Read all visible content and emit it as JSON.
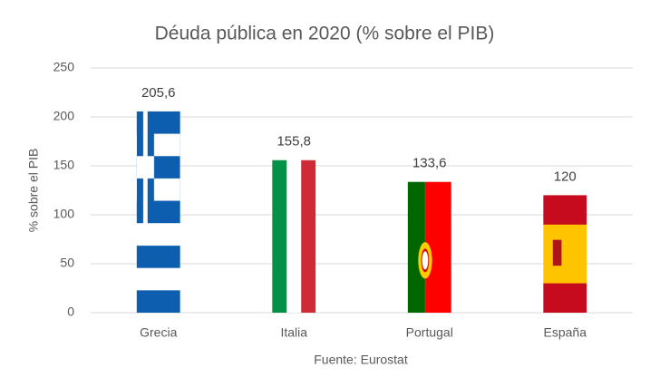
{
  "chart_data": {
    "type": "bar",
    "title": "Déuda pública en 2020 (% sobre el PIB)",
    "y_label": "% sobre el PIB",
    "x_label": "Fuente: Eurostat",
    "categories": [
      "Grecia",
      "Italia",
      "Portugal",
      "España"
    ],
    "values": [
      205.6,
      155.8,
      133.6,
      120
    ],
    "value_labels": [
      "205,6",
      "155,8",
      "133,6",
      "120"
    ],
    "ylim": [
      0,
      250
    ],
    "yticks": [
      0,
      50,
      100,
      150,
      200,
      250
    ],
    "grid": true
  }
}
